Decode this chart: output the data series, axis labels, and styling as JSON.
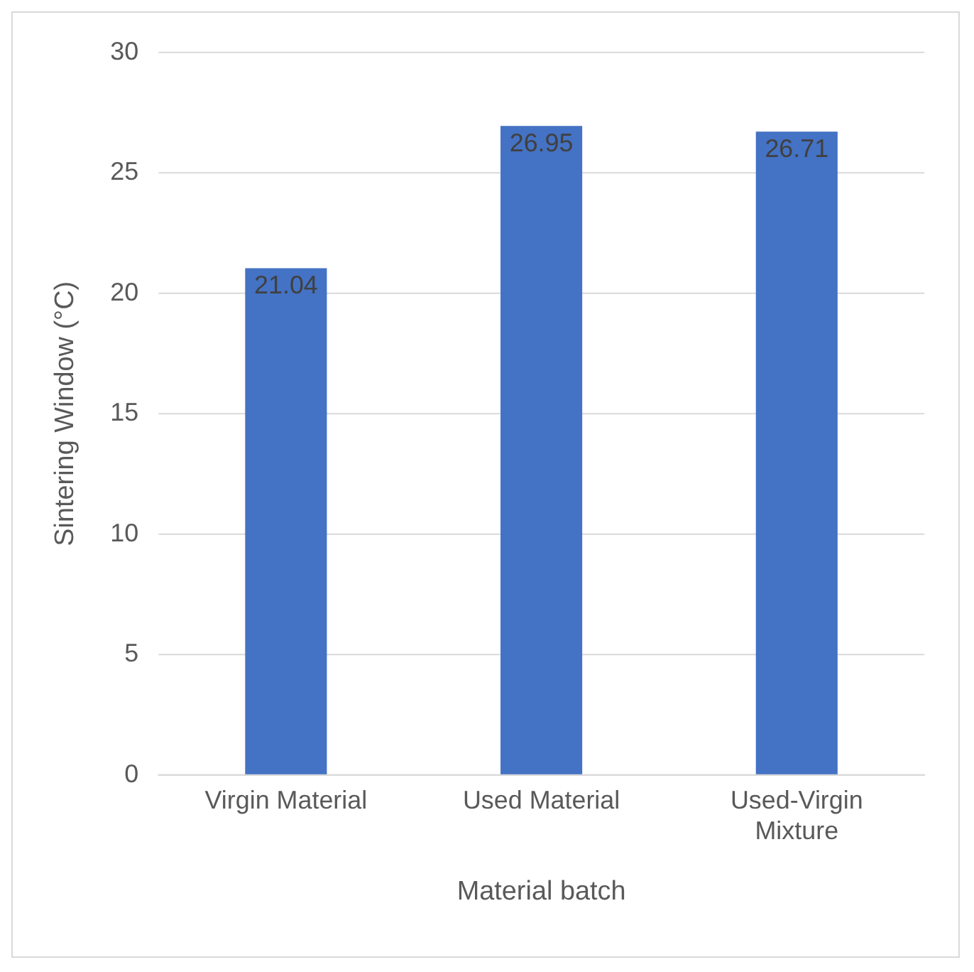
{
  "chart_data": {
    "type": "bar",
    "xlabel": "Material batch",
    "ylabel": "Sintering Window (°C)",
    "categories": [
      "Virgin Material",
      "Used Material",
      "Used-Virgin Mixture"
    ],
    "values": [
      21.04,
      26.95,
      26.71
    ],
    "color": "#4472c4",
    "ylim": [
      0,
      30
    ],
    "yticks": [
      0,
      5,
      10,
      15,
      20,
      25,
      30
    ],
    "grid": "y",
    "data_labels": true,
    "legend": false
  }
}
